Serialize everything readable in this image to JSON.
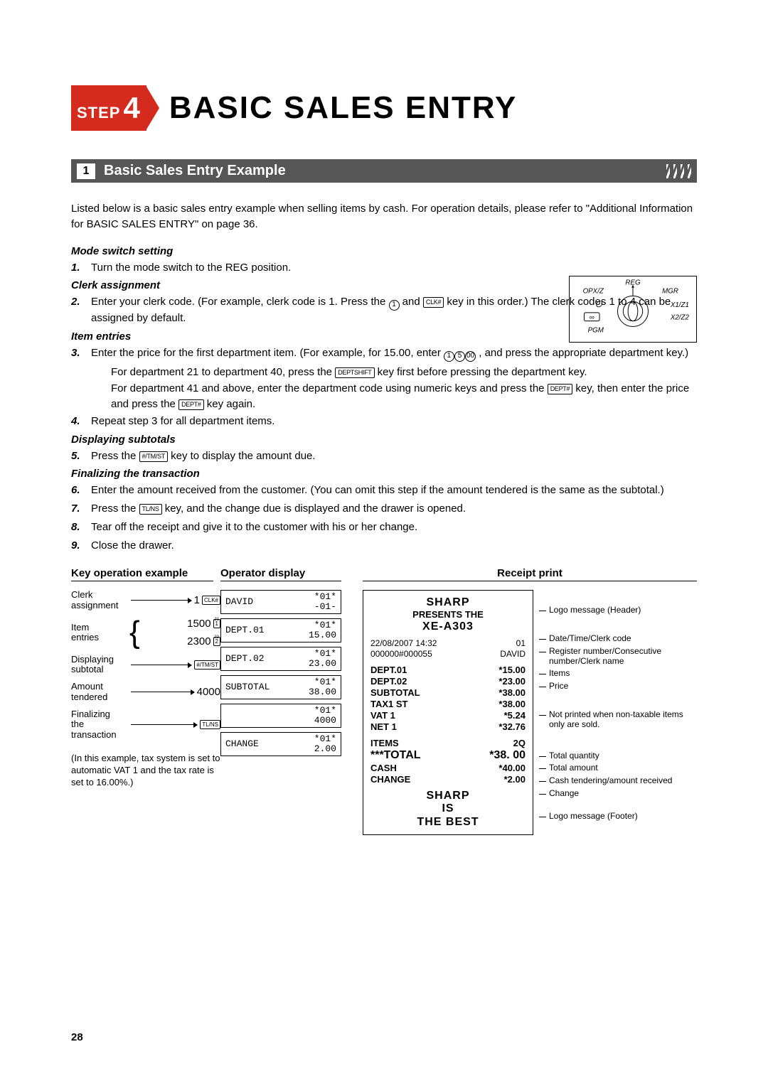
{
  "step": {
    "label": "STEP",
    "num": "4",
    "title": "BASIC SALES ENTRY"
  },
  "section": {
    "num": "1",
    "title": "Basic Sales Entry Example"
  },
  "intro": "Listed below is a basic sales entry example when selling items by cash.  For operation details, please refer to \"Additional Information for BASIC SALES ENTRY\" on page 36.",
  "subheads": {
    "mode": "Mode switch setting",
    "clerk": "Clerk assignment",
    "item": "Item entries",
    "subtotal": "Displaying subtotals",
    "final": "Finalizing the transaction"
  },
  "steps": {
    "s1": "Turn the mode switch to the REG position.",
    "s2a": "Enter your clerk code. (For example, clerk code is 1.  Press the ",
    "s2b": " and ",
    "s2c": " key in this order.)  The clerk codes 1 to 4 can be assigned by default.",
    "s3a": "Enter the price for the first department item. (For example, for 15.00, enter ",
    "s3b": ", and press the appropriate department key.)",
    "s3i1a": "For department 21 to department 40, press the ",
    "s3i1b": " key first before pressing the department key.",
    "s3i2a": "For department 41 and above, enter the department code using numeric keys and press the ",
    "s3i2b": " key, then enter the price and press the ",
    "s3i2c": " key again.",
    "s4": "Repeat step 3 for all department items.",
    "s5a": "Press the ",
    "s5b": " key to display the amount due.",
    "s6": "Enter the amount received from the customer.  (You can omit this step if the amount tendered is the same as the subtotal.)",
    "s7a": "Press the ",
    "s7b": " key, and the change due is displayed and the drawer is opened.",
    "s8": "Tear off the receipt and give it to the customer with his or her change.",
    "s9": "Close the drawer."
  },
  "keys": {
    "clk": "CLK#",
    "deptshift": "DEPTSHIFT",
    "depthash": "DEPT#",
    "tmst": "#/TM/ST",
    "tlns": "TL/NS",
    "r1": "1",
    "r5": "5",
    "r00": "00"
  },
  "exheaders": {
    "a": "Key operation example",
    "b": "Operator display",
    "c": "Receipt print"
  },
  "keyop": {
    "clerk": {
      "lbl": "Clerk\nassignment",
      "val": "1",
      "key": "CLK#"
    },
    "item": {
      "lbl": "Item\nentries",
      "v1": "1500",
      "k1": "1",
      "k1s": "21",
      "v2": "2300",
      "k2": "2",
      "k2s": "22"
    },
    "sub": {
      "lbl": "Displaying\nsubtotal",
      "key": "#/TM/ST"
    },
    "amt": {
      "lbl": "Amount\ntendered",
      "val": "4000"
    },
    "fin": {
      "lbl": "Finalizing\nthe transaction",
      "key": "TL/NS"
    }
  },
  "lcd": [
    {
      "l": "DAVID",
      "r": "*01*\n-01-"
    },
    {
      "l": "DEPT.01",
      "r": "*01*\n15.00"
    },
    {
      "l": "DEPT.02",
      "r": "*01*\n23.00"
    },
    {
      "l": "SUBTOTAL",
      "r": "*01*\n38.00"
    },
    {
      "l": "",
      "r": "*01*\n4000"
    },
    {
      "l": "CHANGE",
      "r": "*01*\n2.00"
    }
  ],
  "receipt": {
    "brand": "SHARP",
    "presents": "PRESENTS THE",
    "model": "XE-A303",
    "dt": "22/08/2007 14:32",
    "reg": "01",
    "serial": "000000#000055",
    "clerk": "DAVID",
    "rows": [
      {
        "l": "DEPT.01",
        "r": "*15.00"
      },
      {
        "l": "DEPT.02",
        "r": "*23.00"
      },
      {
        "l": "SUBTOTAL",
        "r": "*38.00"
      },
      {
        "l": "TAX1 ST",
        "r": "*38.00"
      },
      {
        "l": "VAT 1",
        "r": "*5.24"
      },
      {
        "l": "NET 1",
        "r": "*32.76"
      }
    ],
    "items": {
      "l": "ITEMS",
      "r": "2Q"
    },
    "total": {
      "l": "***TOTAL",
      "r": "*38. 00"
    },
    "cash": {
      "l": "CASH",
      "r": "*40.00"
    },
    "change": {
      "l": "CHANGE",
      "r": "*2.00"
    },
    "foot1": "SHARP",
    "foot2": "IS",
    "foot3": "THE BEST"
  },
  "annotations": {
    "a1": "Logo message (Header)",
    "a2": "Date/Time/Clerk code",
    "a3": "Register number/Consecutive number/Clerk name",
    "a4": "Items",
    "a5": "Price",
    "a6": "Not printed when non-taxable items only are sold.",
    "a7": "Total quantity",
    "a8": "Total amount",
    "a9": "Cash tendering/amount received",
    "a10": "Change",
    "a11": "Logo message (Footer)"
  },
  "note": "(In this example, tax system is set to automatic VAT 1 and the tax rate is set to 16.00%.)",
  "dial": {
    "reg": "REG",
    "opxz": "OPX/Z",
    "mgr": "MGR",
    "x1z1": "X1/Z1",
    "x2z2": "X2/Z2",
    "pgm": "PGM"
  },
  "pagenum": "28"
}
